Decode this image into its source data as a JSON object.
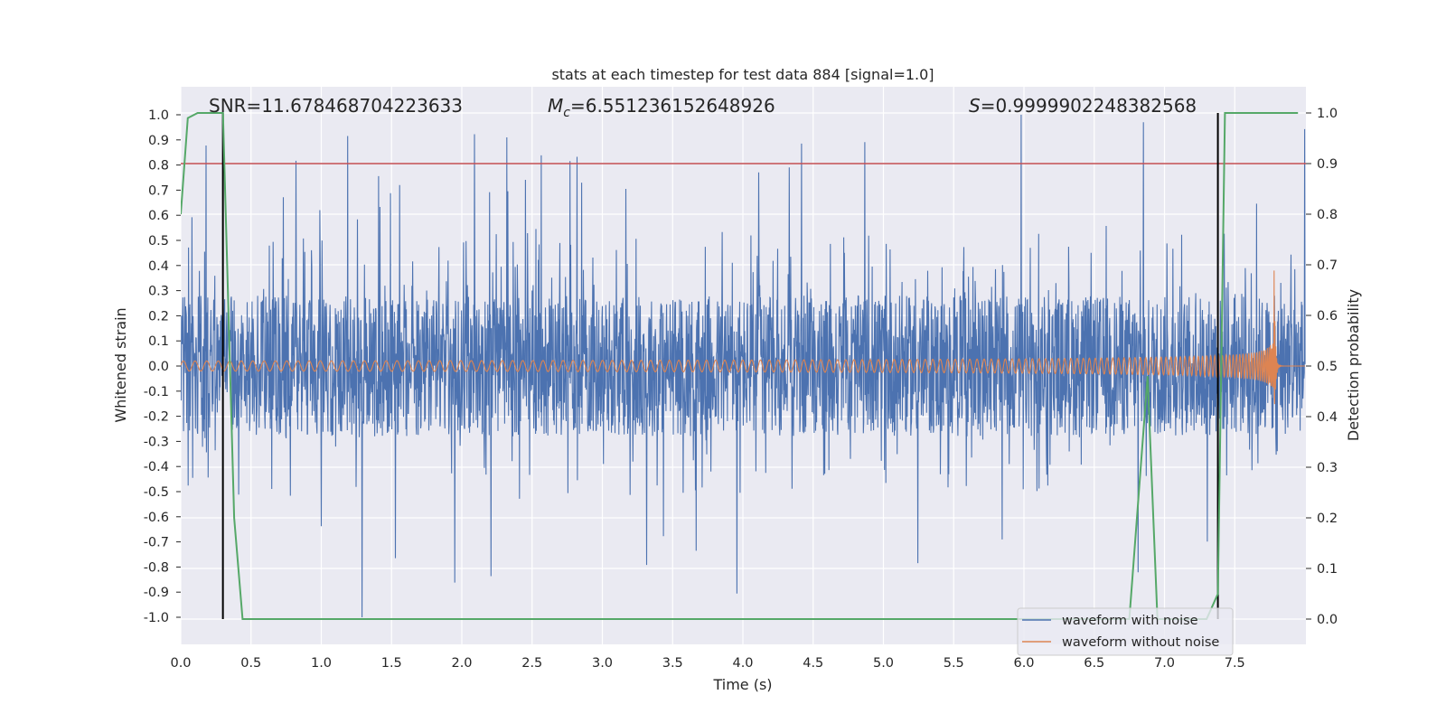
{
  "chart_data": {
    "type": "line",
    "title": "stats at each timestep for test data 884 [signal=1.0]",
    "xlabel": "Time (s)",
    "ylabel_left": "Whitened strain",
    "ylabel_right": "Detection probability",
    "xlim": [
      0.0,
      8.0
    ],
    "ylim_left": [
      -1.07,
      1.1
    ],
    "ylim_right": [
      -0.05,
      1.05
    ],
    "x_ticks": [
      "0.0",
      "0.5",
      "1.0",
      "1.5",
      "2.0",
      "2.5",
      "3.0",
      "3.5",
      "4.0",
      "4.5",
      "5.0",
      "5.5",
      "6.0",
      "6.5",
      "7.0",
      "7.5"
    ],
    "y_left_ticks": [
      "1.0",
      "0.9",
      "0.8",
      "0.7",
      "0.6",
      "0.5",
      "0.4",
      "0.3",
      "0.2",
      "0.1",
      "0.0",
      "-0.1",
      "-0.2",
      "-0.3",
      "-0.4",
      "-0.5",
      "-0.6",
      "-0.7",
      "-0.8",
      "-0.9",
      "-1.0"
    ],
    "y_right_ticks": [
      "1.0",
      "0.9",
      "0.8",
      "0.7",
      "0.6",
      "0.5",
      "0.4",
      "0.3",
      "0.2",
      "0.1",
      "0.0"
    ],
    "grid": true,
    "legend": {
      "position": "bottom-right",
      "entries": [
        {
          "label": "waveform with noise",
          "color": "#4c72b0"
        },
        {
          "label": "waveform without noise",
          "color": "#dd8452"
        }
      ]
    },
    "annotations": {
      "snr": "SNR=11.678468704223633",
      "mc_symbol": "M",
      "mc_sub": "c",
      "mc_value": "=6.551236152648926",
      "s_symbol": "S",
      "s_value": "=0.9999902248382568"
    },
    "threshold": {
      "value": 0.9,
      "axis": "right",
      "color": "#c44e52"
    },
    "markers": [
      {
        "x": 0.3
      },
      {
        "x": 7.38
      }
    ],
    "series": [
      {
        "name": "waveform with noise",
        "axis": "left",
        "color": "#4c72b0",
        "description": "noise band",
        "envelope_rms": 0.17,
        "peak_max": 1.0,
        "peak_min": -1.0
      },
      {
        "name": "waveform without noise",
        "axis": "left",
        "color": "#dd8452",
        "chirp": {
          "start_amp": 0.02,
          "peak_amp": 0.38,
          "peak_t": 7.78,
          "end_t": 7.8
        }
      },
      {
        "axis": "right",
        "color": "#55a868",
        "x": [
          0.0,
          0.05,
          0.12,
          0.25,
          0.3,
          0.38,
          0.44,
          6.75,
          6.88,
          6.95,
          7.3,
          7.38,
          7.43,
          7.95
        ],
        "y": [
          0.8,
          0.99,
          1.0,
          1.0,
          1.0,
          0.2,
          0.0,
          0.0,
          0.48,
          0.0,
          0.0,
          0.05,
          1.0,
          1.0
        ]
      }
    ]
  }
}
